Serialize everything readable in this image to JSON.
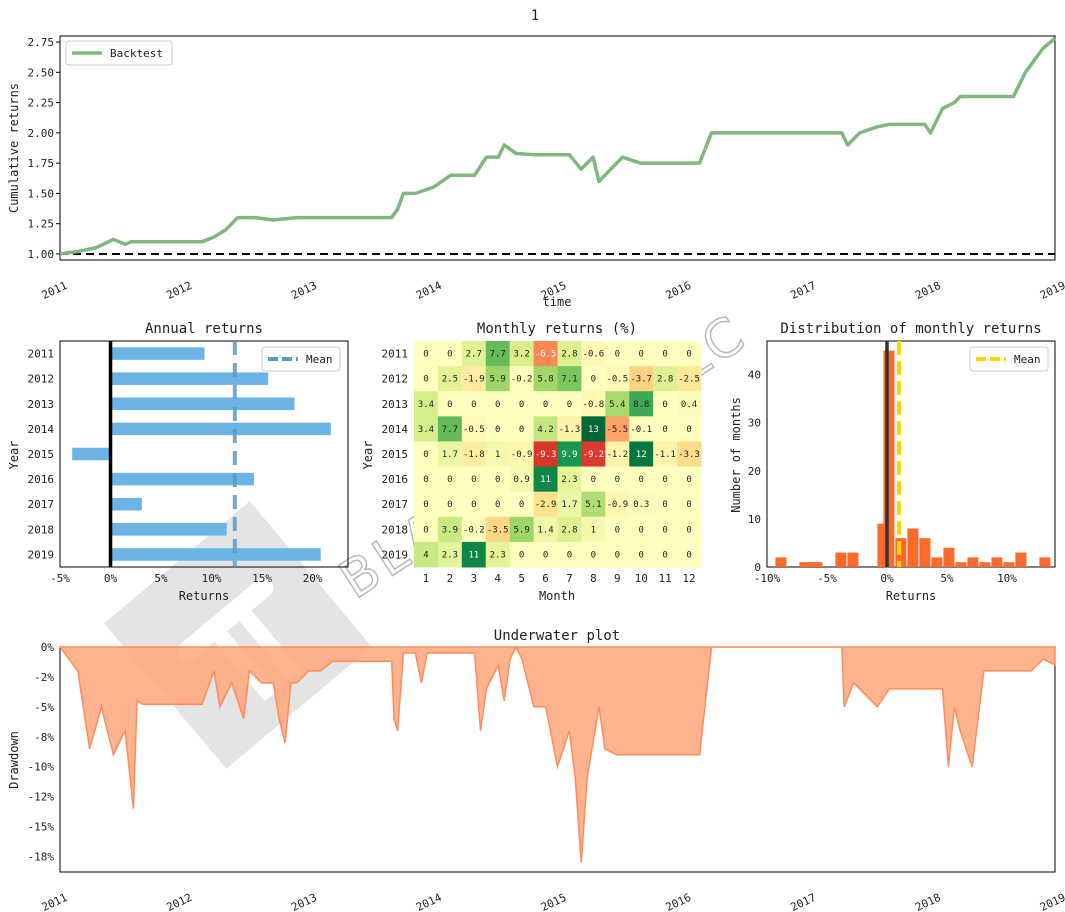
{
  "figure": {
    "suptitle": "1",
    "watermark_text": "BLACKARBS LLC"
  },
  "chart_data": [
    {
      "id": "cumulative",
      "type": "line",
      "title": "",
      "xlabel": "time",
      "ylabel": "Cumulative returns",
      "x_ticks": [
        "2011",
        "2012",
        "2013",
        "2014",
        "2015",
        "2016",
        "2017",
        "2018",
        "2019"
      ],
      "ylim": [
        0.95,
        2.8
      ],
      "y_ticks": [
        "1.00",
        "1.25",
        "1.50",
        "1.75",
        "2.00",
        "2.25",
        "2.50",
        "2.75"
      ],
      "y_tick_values": [
        1.0,
        1.25,
        1.5,
        1.75,
        2.0,
        2.25,
        2.5,
        2.75
      ],
      "xlim": [
        2011.0,
        2019.4
      ],
      "legend": {
        "placement": "top-left",
        "entries": [
          "Backtest"
        ]
      },
      "reference_line": 1.0,
      "series": [
        {
          "name": "Backtest",
          "color": "#7fb77e",
          "x": [
            2011.0,
            2011.15,
            2011.3,
            2011.45,
            2011.55,
            2011.6,
            2011.7,
            2011.9,
            2012.1,
            2012.2,
            2012.3,
            2012.4,
            2012.5,
            2012.65,
            2012.8,
            2013.0,
            2013.2,
            2013.4,
            2013.6,
            2013.8,
            2013.85,
            2013.9,
            2014.0,
            2014.15,
            2014.3,
            2014.5,
            2014.6,
            2014.7,
            2014.75,
            2014.85,
            2015.0,
            2015.3,
            2015.4,
            2015.5,
            2015.55,
            2015.65,
            2015.75,
            2015.9,
            2016.0,
            2016.2,
            2016.4,
            2016.5,
            2016.6,
            2016.7,
            2017.0,
            2017.3,
            2017.6,
            2017.65,
            2017.75,
            2017.9,
            2018.0,
            2018.3,
            2018.35,
            2018.45,
            2018.55,
            2018.6,
            2018.7,
            2019.0,
            2019.05,
            2019.15,
            2019.3,
            2019.4
          ],
          "y": [
            1.0,
            1.02,
            1.05,
            1.12,
            1.08,
            1.1,
            1.1,
            1.1,
            1.1,
            1.1,
            1.14,
            1.2,
            1.3,
            1.3,
            1.28,
            1.3,
            1.3,
            1.3,
            1.3,
            1.3,
            1.37,
            1.5,
            1.5,
            1.55,
            1.65,
            1.65,
            1.8,
            1.8,
            1.9,
            1.83,
            1.82,
            1.82,
            1.7,
            1.8,
            1.6,
            1.7,
            1.8,
            1.75,
            1.75,
            1.75,
            1.75,
            2.0,
            2.0,
            2.0,
            2.0,
            2.0,
            2.0,
            1.9,
            2.0,
            2.05,
            2.07,
            2.07,
            2.0,
            2.2,
            2.25,
            2.3,
            2.3,
            2.3,
            2.3,
            2.5,
            2.7,
            2.78
          ]
        }
      ]
    },
    {
      "id": "annual",
      "type": "bar",
      "orientation": "horizontal",
      "title": "Annual returns",
      "xlabel": "Returns",
      "ylabel": "Year",
      "categories": [
        "2011",
        "2012",
        "2013",
        "2014",
        "2015",
        "2016",
        "2017",
        "2018",
        "2019"
      ],
      "values": [
        9.3,
        15.6,
        18.2,
        21.8,
        -3.8,
        14.2,
        3.1,
        11.5,
        20.8
      ],
      "xlim": [
        -5,
        23.5
      ],
      "x_ticks": [
        "-5%",
        "0%",
        "5%",
        "10%",
        "15%",
        "20%"
      ],
      "x_tick_values": [
        -5,
        0,
        5,
        10,
        15,
        20
      ],
      "mean": 12.3,
      "legend": {
        "placement": "top-right",
        "entries": [
          "Mean"
        ]
      },
      "colors": {
        "bar": "#6cb4e6",
        "mean": "#5d9acc"
      }
    },
    {
      "id": "monthly",
      "type": "heatmap",
      "title": "Monthly returns (%)",
      "xlabel": "Month",
      "ylabel": "Year",
      "rows": [
        "2011",
        "2012",
        "2013",
        "2014",
        "2015",
        "2016",
        "2017",
        "2018",
        "2019"
      ],
      "cols": [
        "1",
        "2",
        "3",
        "4",
        "5",
        "6",
        "7",
        "8",
        "9",
        "10",
        "11",
        "12"
      ],
      "values": [
        [
          "0",
          "0",
          "2.7",
          "7.7",
          "3.2",
          "-6.5",
          "2.8",
          "-0.6",
          "0",
          "0",
          "0",
          "0"
        ],
        [
          "0",
          "2.5",
          "-1.9",
          "5.9",
          "-0.2",
          "5.8",
          "7.1",
          "0",
          "-0.5",
          "-3.7",
          "2.8",
          "-2.5"
        ],
        [
          "3.4",
          "0",
          "0",
          "0",
          "0",
          "0",
          "0",
          "-0.8",
          "5.4",
          "8.8",
          "0",
          "0.4"
        ],
        [
          "3.4",
          "7.7",
          "-0.5",
          "0",
          "0",
          "4.2",
          "-1.3",
          "13",
          "-5.5",
          "-0.1",
          "0",
          "0"
        ],
        [
          "0",
          "1.7",
          "-1.8",
          "1",
          "-0.9",
          "-9.3",
          "9.9",
          "-9.2",
          "-1.2",
          "12",
          "-1.1",
          "-3.3"
        ],
        [
          "0",
          "0",
          "0",
          "0",
          "0.9",
          "11",
          "2.3",
          "0",
          "0",
          "0",
          "0",
          "0"
        ],
        [
          "0",
          "0",
          "0",
          "0",
          "0",
          "-2.9",
          "1.7",
          "5.1",
          "-0.9",
          "0.3",
          "0",
          "0"
        ],
        [
          "0",
          "3.9",
          "-0.2",
          "-3.5",
          "5.9",
          "1.4",
          "2.8",
          "1",
          "0",
          "0",
          "0",
          "0"
        ],
        [
          "4",
          "2.3",
          "11",
          "2.3",
          "0",
          "0",
          "0",
          "0",
          "0",
          "0",
          "0",
          "0"
        ]
      ]
    },
    {
      "id": "distribution",
      "type": "bar",
      "title": "Distribution of monthly returns",
      "xlabel": "Returns",
      "ylabel": "Number of months",
      "x_ticks": [
        "-10%",
        "-5%",
        "0%",
        "5%",
        "10%"
      ],
      "x_tick_values": [
        -10,
        -5,
        0,
        5,
        10
      ],
      "y_ticks": [
        "0",
        "10",
        "20",
        "30",
        "40"
      ],
      "y_tick_values": [
        0,
        10,
        20,
        30,
        40
      ],
      "xlim": [
        -10,
        14
      ],
      "ylim": [
        0,
        47
      ],
      "bin_width": 0.5,
      "bins_left": [
        -9.3,
        -8.3,
        -7.3,
        -6.8,
        -6.3,
        -5.8,
        -5.3,
        -4.3,
        -3.8,
        -3.3,
        -2.8,
        -2.3,
        -1.8,
        -1.3,
        -0.8,
        -0.3,
        0.2,
        0.7,
        1.2,
        1.7,
        2.2,
        2.7,
        3.2,
        3.7,
        4.2,
        4.7,
        5.2,
        5.7,
        6.2,
        6.7,
        7.2,
        7.7,
        8.2,
        8.7,
        9.2,
        9.7,
        10.2,
        10.7,
        11.2,
        11.7,
        12.2,
        12.7
      ],
      "counts": [
        2,
        0,
        1,
        1,
        1,
        0,
        0,
        3,
        0,
        3,
        0,
        0,
        0,
        0,
        9,
        45,
        0,
        6,
        0,
        8,
        0,
        6,
        0,
        2,
        0,
        4,
        0,
        1,
        0,
        2,
        0,
        1,
        0,
        2,
        0,
        1,
        0,
        3,
        0,
        0,
        0,
        2
      ],
      "mean": 1.0,
      "legend": {
        "placement": "top-right",
        "entries": [
          "Mean"
        ]
      },
      "colors": {
        "bar": "#ff6a2a",
        "mean": "#ffd700"
      }
    },
    {
      "id": "underwater",
      "type": "area",
      "title": "Underwater plot",
      "xlabel": "",
      "ylabel": "Drawdown",
      "x_ticks": [
        "2011",
        "2012",
        "2013",
        "2014",
        "2015",
        "2016",
        "2017",
        "2018",
        "2019"
      ],
      "y_ticks": [
        "0%",
        "-2%",
        "-5%",
        "-8%",
        "-10%",
        "-12%",
        "-15%",
        "-18%"
      ],
      "y_tick_values": [
        0,
        -2.5,
        -5,
        -7.5,
        -10,
        -12.5,
        -15,
        -17.5
      ],
      "xlim": [
        2011.0,
        2019.4
      ],
      "ylim": [
        -18.8,
        0
      ],
      "series": [
        {
          "name": "",
          "color": "#ff8c5a",
          "x": [
            2011.0,
            2011.15,
            2011.25,
            2011.35,
            2011.45,
            2011.55,
            2011.62,
            2011.65,
            2011.7,
            2011.8,
            2011.9,
            2012.0,
            2012.1,
            2012.2,
            2012.3,
            2012.35,
            2012.45,
            2012.55,
            2012.6,
            2012.7,
            2012.8,
            2012.85,
            2012.9,
            2012.95,
            2013.0,
            2013.1,
            2013.2,
            2013.3,
            2013.4,
            2013.5,
            2013.6,
            2013.7,
            2013.8,
            2013.82,
            2013.85,
            2013.9,
            2014.0,
            2014.05,
            2014.1,
            2014.2,
            2014.3,
            2014.4,
            2014.5,
            2014.55,
            2014.6,
            2014.7,
            2014.75,
            2014.8,
            2014.85,
            2014.9,
            2015.0,
            2015.1,
            2015.2,
            2015.3,
            2015.35,
            2015.4,
            2015.45,
            2015.5,
            2015.55,
            2015.6,
            2015.7,
            2015.8,
            2015.85,
            2015.9,
            2016.0,
            2016.1,
            2016.2,
            2016.3,
            2016.4,
            2016.5,
            2016.52,
            2016.6,
            2016.8,
            2017.0,
            2017.2,
            2017.4,
            2017.6,
            2017.62,
            2017.7,
            2017.8,
            2017.9,
            2018.0,
            2018.1,
            2018.2,
            2018.3,
            2018.35,
            2018.45,
            2018.5,
            2018.55,
            2018.6,
            2018.7,
            2018.8,
            2018.9,
            2019.0,
            2019.1,
            2019.2,
            2019.3,
            2019.4
          ],
          "y": [
            0,
            -2,
            -8.5,
            -5,
            -9,
            -7,
            -13.5,
            -4.5,
            -4.8,
            -4.8,
            -4.8,
            -4.8,
            -4.8,
            -4.8,
            -2,
            -5,
            -3,
            -6,
            -2,
            -3,
            -3,
            -6,
            -8,
            -3,
            -3,
            -2,
            -2,
            -1.2,
            -1.2,
            -1.2,
            -1.2,
            -1.2,
            -1.2,
            -6,
            -7,
            -0.5,
            -0.5,
            -3,
            -0.5,
            -0.5,
            -0.5,
            -0.5,
            -0.5,
            -7,
            -3.5,
            -1.5,
            -4.5,
            -1,
            0,
            -1,
            -5,
            -5,
            -10,
            -7,
            -11,
            -18,
            -11,
            -8,
            -5,
            -8.5,
            -9,
            -9,
            -9,
            -9,
            -9,
            -9,
            -9,
            -9,
            -9,
            0,
            0,
            0,
            0,
            0,
            0,
            0,
            0,
            -5,
            -3,
            -4,
            -5,
            -3.5,
            -3.5,
            -3.5,
            -3.5,
            -3.5,
            -3.5,
            -10,
            -5,
            -7,
            -10,
            -2,
            -2,
            -2,
            -2,
            -2,
            -1,
            -1.5
          ]
        }
      ]
    }
  ]
}
